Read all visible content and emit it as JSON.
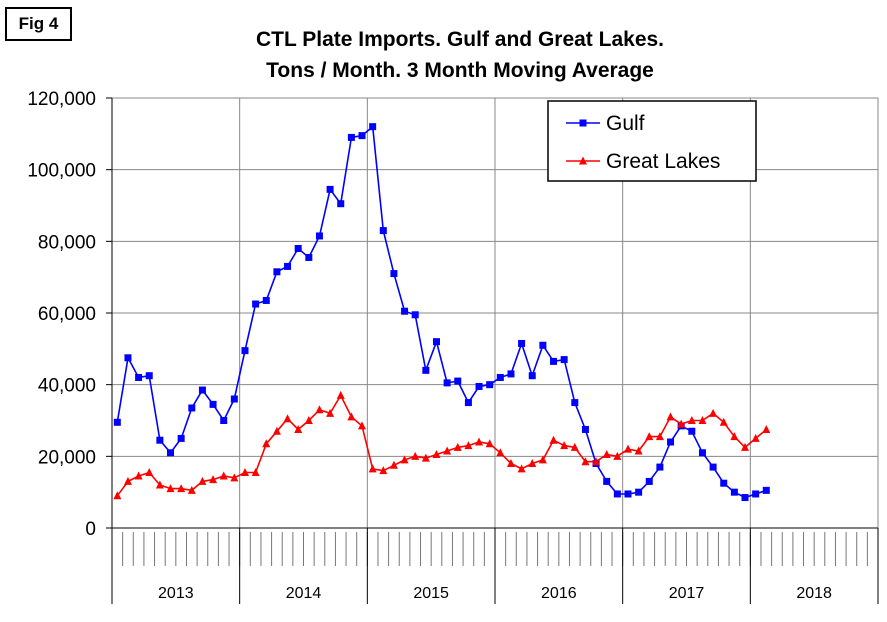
{
  "figure_label": "Fig 4",
  "chart_data": {
    "type": "line",
    "title": "CTL Plate Imports. Gulf and Great Lakes.",
    "subtitle": "Tons / Month. 3 Month Moving Average",
    "xlabel": "",
    "ylabel": "",
    "ylim": [
      0,
      120000
    ],
    "yticks": [
      0,
      20000,
      40000,
      60000,
      80000,
      100000,
      120000
    ],
    "ytick_labels": [
      "0",
      "20,000",
      "40,000",
      "60,000",
      "80,000",
      "100,000",
      "120,000"
    ],
    "years": [
      "2013",
      "2014",
      "2015",
      "2016",
      "2017",
      "2018"
    ],
    "months_per_year": 12,
    "grid": true,
    "legend_position": "top-right",
    "series": [
      {
        "name": "Gulf",
        "color": "#0000FF",
        "marker": "square",
        "values": [
          29500,
          47500,
          42000,
          42500,
          24500,
          21000,
          25000,
          33500,
          38500,
          34500,
          30000,
          36000,
          49500,
          62500,
          63500,
          71500,
          73000,
          78000,
          75500,
          81500,
          94500,
          90500,
          109000,
          109500,
          112000,
          83000,
          71000,
          60500,
          59500,
          44000,
          52000,
          40500,
          41000,
          35000,
          39500,
          40000,
          42000,
          43000,
          51500,
          42500,
          51000,
          46500,
          47000,
          35000,
          27500,
          18000,
          13000,
          9500,
          9500,
          10000,
          13000,
          17000,
          24000,
          28500,
          27000,
          21000,
          17000,
          12500,
          10000,
          8500,
          9500,
          10500
        ]
      },
      {
        "name": "Great Lakes",
        "color": "#FF0000",
        "marker": "triangle",
        "values": [
          9000,
          13000,
          14500,
          15500,
          12000,
          11000,
          11000,
          10500,
          13000,
          13500,
          14500,
          14000,
          15500,
          15500,
          23500,
          27000,
          30500,
          27500,
          30000,
          33000,
          32000,
          37000,
          31000,
          28500,
          16500,
          16000,
          17500,
          19000,
          20000,
          19500,
          20500,
          21500,
          22500,
          23000,
          24000,
          23500,
          21000,
          18000,
          16500,
          18000,
          19000,
          24500,
          23000,
          22500,
          18500,
          18500,
          20500,
          20000,
          22000,
          21500,
          25500,
          25500,
          31000,
          29000,
          30000,
          30000,
          32000,
          29500,
          25500,
          22500,
          25000,
          27500
        ]
      }
    ]
  }
}
